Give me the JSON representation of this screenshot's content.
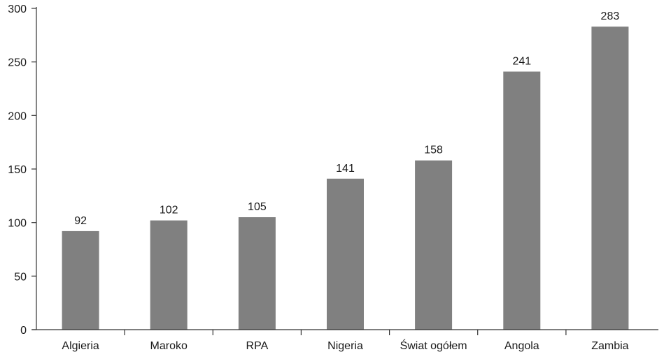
{
  "chart_data": {
    "type": "bar",
    "categories": [
      "Algieria",
      "Maroko",
      "RPA",
      "Nigeria",
      "Świat ogółem",
      "Angola",
      "Zambia"
    ],
    "values": [
      92,
      102,
      105,
      141,
      158,
      241,
      283
    ],
    "title": "",
    "xlabel": "",
    "ylabel": "",
    "ylim": [
      0,
      300
    ],
    "yticks": [
      0,
      50,
      100,
      150,
      200,
      250,
      300
    ],
    "grid": false,
    "legend": "none",
    "bar_color": "#808080",
    "axis_color": "#333333"
  }
}
